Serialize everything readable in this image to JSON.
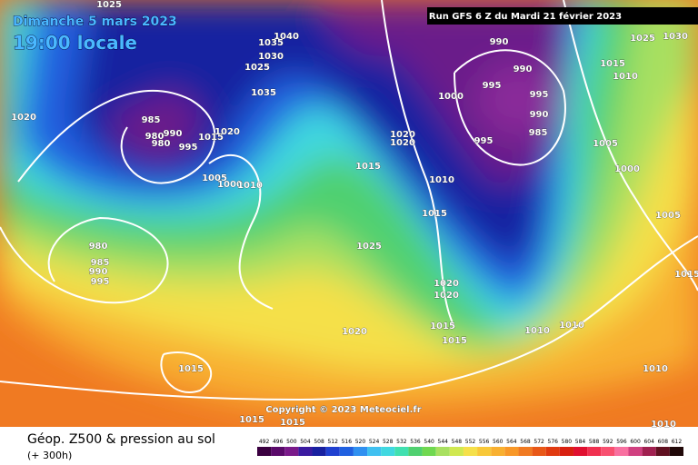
{
  "header": {
    "date": "Dimanche 5 mars 2023",
    "time": "19:00 locale",
    "run": "Run GFS 6 Z du Mardi 21 février 2023"
  },
  "footer": {
    "copyright": "Copyright © 2023 Meteociel.fr",
    "title": "Géop. Z500 & pression au sol",
    "lead": "(+ 300h)"
  },
  "colorbar": [
    492,
    496,
    500,
    504,
    508,
    512,
    516,
    520,
    524,
    528,
    532,
    536,
    540,
    544,
    548,
    552,
    556,
    560,
    564,
    568,
    572,
    576,
    580,
    584,
    588,
    592,
    596,
    600,
    604,
    608,
    612
  ],
  "isobar_labels": [
    1025,
    1040,
    1035,
    1030,
    1025,
    1035,
    1020,
    985,
    990,
    980,
    980,
    995,
    1015,
    1020,
    1005,
    1000,
    1010,
    980,
    985,
    990,
    995,
    1020,
    1020,
    1015,
    1025,
    1020,
    1015,
    1015,
    1015,
    990,
    990,
    995,
    995,
    1000,
    990,
    985,
    995,
    1010,
    1015,
    1020,
    1020,
    1015,
    1015,
    1010,
    1010,
    1005,
    1000,
    1025,
    1030,
    1015,
    1010,
    1005,
    1015,
    1010,
    1010
  ]
}
